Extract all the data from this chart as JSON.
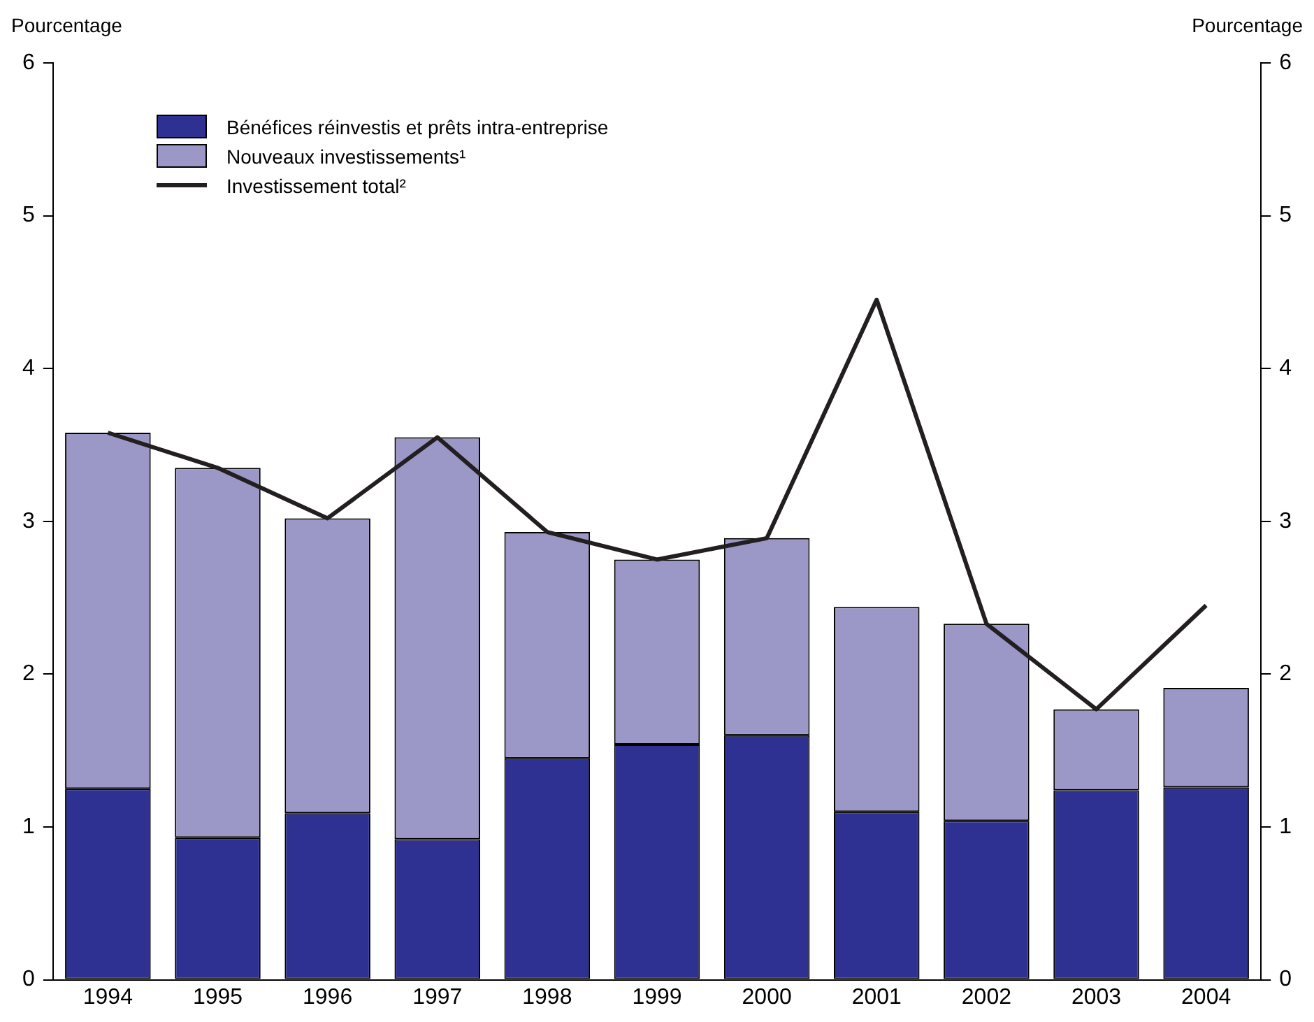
{
  "chart_data": {
    "type": "bar",
    "stacked": true,
    "ylabel": "Pourcentage",
    "y2label": "Pourcentage",
    "categories": [
      "1994",
      "1995",
      "1996",
      "1997",
      "1998",
      "1999",
      "2000",
      "2001",
      "2002",
      "2003",
      "2004"
    ],
    "series": [
      {
        "name": "Bénéfices réinvestis et prêts intra-entreprise",
        "color": "#2e3192",
        "values": [
          1.25,
          0.93,
          1.09,
          0.92,
          1.45,
          1.54,
          1.6,
          1.1,
          1.04,
          1.24,
          1.26
        ]
      },
      {
        "name": "Nouveaux investissements¹",
        "color": "#9b98c8",
        "values": [
          2.33,
          2.42,
          1.93,
          2.63,
          1.48,
          1.21,
          1.29,
          1.34,
          1.29,
          0.53,
          0.65
        ]
      },
      {
        "name": "Investissement total²",
        "type": "line",
        "color": "#231f20",
        "values": [
          3.58,
          3.35,
          3.02,
          3.55,
          2.93,
          2.75,
          2.89,
          4.45,
          2.33,
          1.77,
          2.45
        ]
      }
    ],
    "ylim": [
      0,
      6
    ],
    "yticks": [
      0,
      1,
      2,
      3,
      4,
      5,
      6
    ],
    "y2lim": [
      0,
      6
    ],
    "y2ticks": [
      0,
      1,
      2,
      3,
      4,
      5,
      6
    ],
    "grid": false,
    "legend": "top left",
    "marker": "none",
    "line_style": "solid"
  }
}
